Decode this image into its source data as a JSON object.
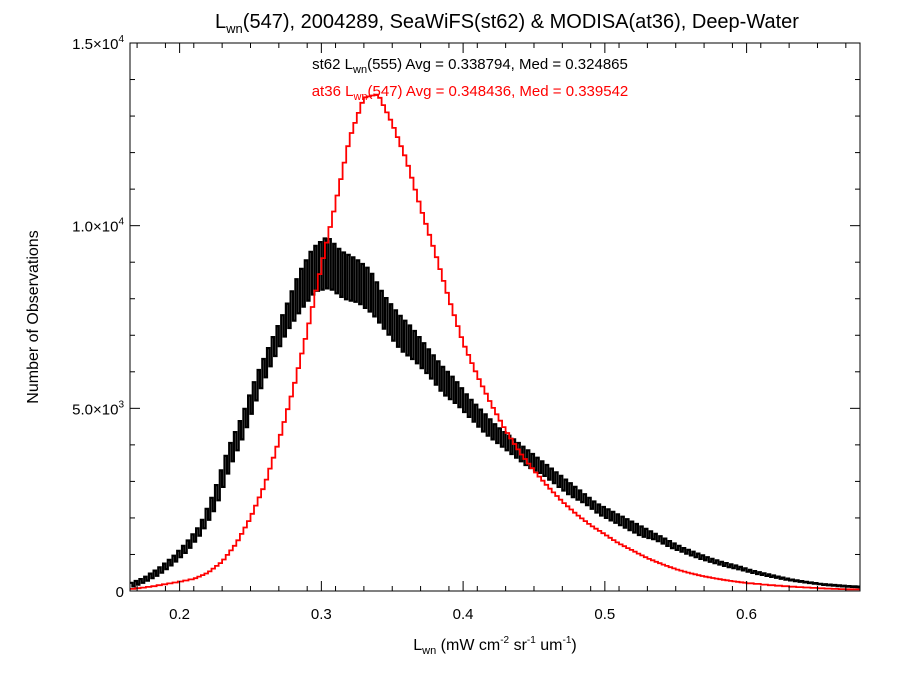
{
  "chart_data": {
    "type": "line",
    "title": {
      "main": "L",
      "sub": "wn",
      "rest": "(547), 2004289, SeaWiFS(st62) & MODISA(at36), Deep-Water"
    },
    "xlabel": {
      "main": "L",
      "sub": "wn",
      "rest": " (mW cm",
      "sup1": "-2",
      "mid": " sr",
      "sup2": "-1",
      "mid2": " um",
      "sup3": "-1",
      "end": ")"
    },
    "ylabel": "Number of Observations",
    "xlim": [
      0.165,
      0.68
    ],
    "ylim": [
      0,
      15000
    ],
    "x_ticks": [
      {
        "value": 0.2,
        "label": "0.2"
      },
      {
        "value": 0.3,
        "label": "0.3"
      },
      {
        "value": 0.4,
        "label": "0.4"
      },
      {
        "value": 0.5,
        "label": "0.5"
      },
      {
        "value": 0.6,
        "label": "0.6"
      }
    ],
    "y_ticks": [
      {
        "value": 0,
        "mant": "0",
        "exp": ""
      },
      {
        "value": 5000,
        "mant": "5.0×10",
        "exp": "3"
      },
      {
        "value": 10000,
        "mant": "1.0×10",
        "exp": "4"
      },
      {
        "value": 15000,
        "mant": "1.5×10",
        "exp": "4"
      }
    ],
    "annotations": [
      {
        "prefix": "st62 L",
        "sub": "wn",
        "rest": "(555) Avg = 0.338794, Med = 0.324865",
        "color": "#000000"
      },
      {
        "prefix": "at36 L",
        "sub": "wn",
        "rest": "(547) Avg = 0.348436, Med = 0.339542",
        "color": "#ff0000"
      }
    ],
    "series": [
      {
        "color": "#000000",
        "x": [
          0.165,
          0.175,
          0.185,
          0.195,
          0.205,
          0.215,
          0.225,
          0.235,
          0.245,
          0.255,
          0.265,
          0.275,
          0.285,
          0.295,
          0.305,
          0.315,
          0.325,
          0.335,
          0.345,
          0.355,
          0.365,
          0.375,
          0.385,
          0.395,
          0.405,
          0.415,
          0.425,
          0.435,
          0.445,
          0.455,
          0.465,
          0.475,
          0.485,
          0.495,
          0.505,
          0.515,
          0.525,
          0.535,
          0.545,
          0.555,
          0.565,
          0.575,
          0.585,
          0.595,
          0.605,
          0.615,
          0.625,
          0.635,
          0.645,
          0.655,
          0.665,
          0.675,
          0.68
        ],
        "hi": [
          200,
          350,
          600,
          900,
          1300,
          1800,
          2700,
          3900,
          4800,
          5900,
          6800,
          7700,
          8700,
          9400,
          9700,
          9300,
          9100,
          8800,
          8100,
          7600,
          7200,
          6700,
          6200,
          5800,
          5300,
          4900,
          4500,
          4200,
          3900,
          3600,
          3300,
          3000,
          2700,
          2400,
          2200,
          2000,
          1800,
          1600,
          1400,
          1200,
          1050,
          900,
          780,
          680,
          560,
          470,
          380,
          300,
          240,
          190,
          160,
          130,
          120
        ],
        "lo": [
          100,
          250,
          450,
          750,
          1100,
          1600,
          2300,
          3400,
          4300,
          5400,
          6300,
          7100,
          7700,
          8200,
          8300,
          8000,
          7900,
          7600,
          7100,
          6600,
          6300,
          5900,
          5400,
          5100,
          4700,
          4300,
          4000,
          3700,
          3400,
          3200,
          2900,
          2600,
          2400,
          2100,
          1900,
          1700,
          1500,
          1400,
          1200,
          1050,
          900,
          780,
          670,
          580,
          480,
          400,
          320,
          260,
          210,
          160,
          130,
          110,
          100
        ]
      },
      {
        "color": "#ff0000",
        "x": [
          0.165,
          0.18,
          0.195,
          0.21,
          0.22,
          0.23,
          0.24,
          0.25,
          0.26,
          0.27,
          0.28,
          0.29,
          0.3,
          0.31,
          0.32,
          0.33,
          0.34,
          0.35,
          0.36,
          0.37,
          0.38,
          0.39,
          0.4,
          0.41,
          0.42,
          0.43,
          0.44,
          0.45,
          0.46,
          0.47,
          0.48,
          0.49,
          0.5,
          0.51,
          0.52,
          0.53,
          0.54,
          0.55,
          0.56,
          0.57,
          0.58,
          0.59,
          0.6,
          0.62,
          0.64,
          0.66,
          0.68
        ],
        "y": [
          50,
          120,
          220,
          330,
          500,
          800,
          1300,
          2000,
          2900,
          4100,
          5500,
          7100,
          8900,
          10600,
          12400,
          13500,
          13600,
          12800,
          11800,
          10500,
          9300,
          8000,
          6800,
          5900,
          5100,
          4400,
          3800,
          3300,
          2850,
          2450,
          2100,
          1800,
          1550,
          1300,
          1100,
          900,
          740,
          600,
          490,
          400,
          330,
          270,
          220,
          150,
          100,
          60,
          40
        ]
      }
    ]
  }
}
